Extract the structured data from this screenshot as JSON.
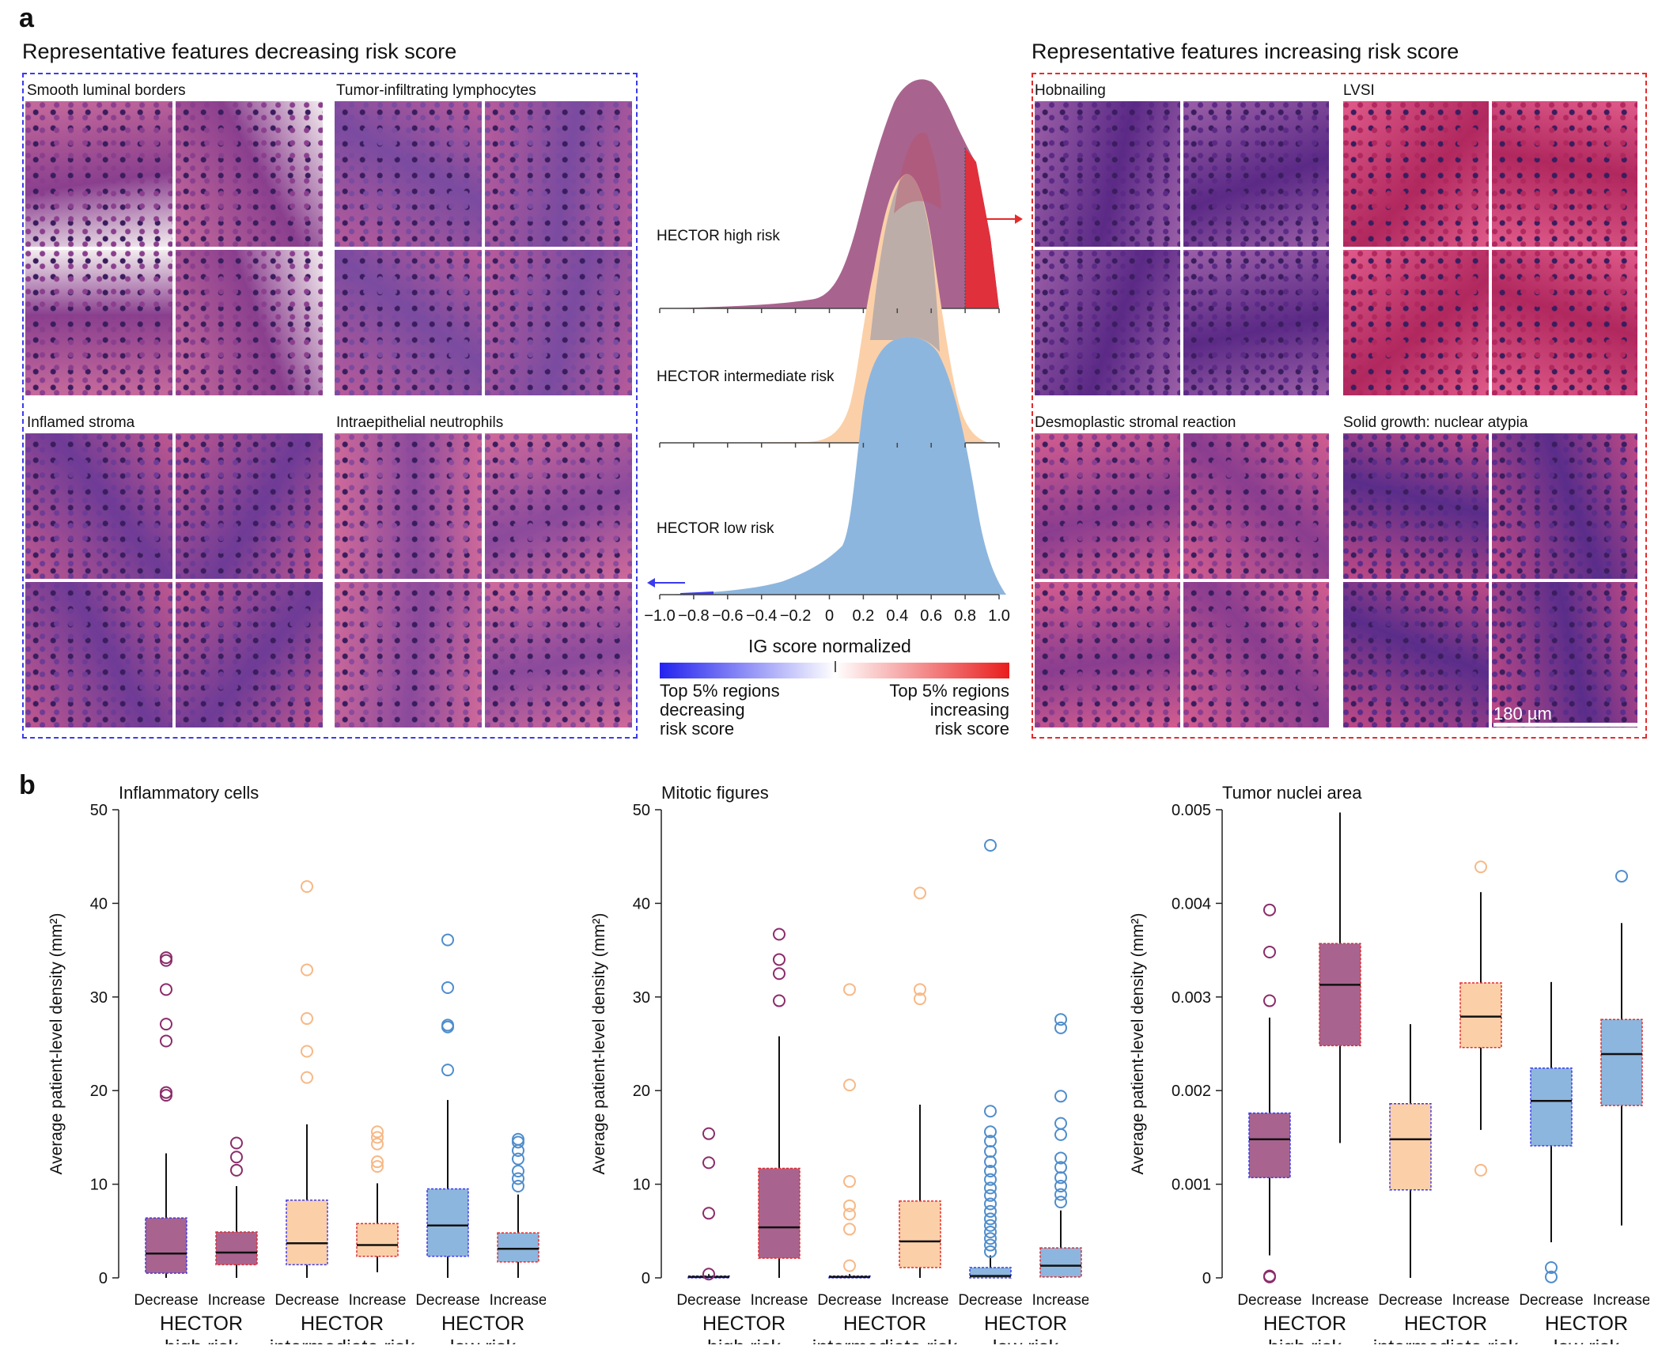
{
  "panel_a": {
    "letter": "a",
    "left_title": "Representative features decreasing risk score",
    "right_title": "Representative features increasing risk score",
    "left_features": [
      "Smooth luminal borders",
      "Tumor-infiltrating lymphocytes",
      "Inflamed stroma",
      "Intraepithelial neutrophils"
    ],
    "right_features": [
      "Hobnailing",
      "LVSI",
      "Desmoplastic stromal reaction",
      "Solid growth: nuclear atypia"
    ],
    "scale_bar": "180 µm",
    "ridge_labels": [
      "HECTOR high risk",
      "HECTOR intermediate risk",
      "HECTOR low risk"
    ],
    "x_ticks": [
      "−1.0",
      "−0.8",
      "−0.6",
      "−0.4",
      "−0.2",
      "0",
      "0.2",
      "0.4",
      "0.6",
      "0.8",
      "1.0"
    ],
    "x_axis_label": "IG score normalized",
    "legend_left": [
      "Top 5% regions",
      "decreasing",
      "risk score"
    ],
    "legend_right": [
      "Top 5% regions",
      "increasing",
      "risk score"
    ],
    "colors": {
      "blue_box": "#3b3bef",
      "red_box": "#e52b2b",
      "high": "#a8648f",
      "inter": "#fbd0a8",
      "low": "#8db6de"
    }
  },
  "panel_b": {
    "letter": "b",
    "y_axis_label": "Average patient-level density (mm²)",
    "category_labels": [
      "Decrease",
      "Increase"
    ],
    "group_labels": [
      [
        "HECTOR",
        "high risk"
      ],
      [
        "HECTOR",
        "intermediate risk"
      ],
      [
        "HECTOR",
        "low risk"
      ]
    ]
  },
  "chart_data": [
    {
      "type": "box",
      "title": "Inflammatory cells",
      "ylabel": "Average patient-level density (mm²)",
      "ylim": [
        0,
        50
      ],
      "yticks": [
        "0",
        "10",
        "20",
        "30",
        "40",
        "50"
      ],
      "boxes": [
        {
          "group": "HECTOR high risk",
          "category": "Decrease",
          "q1": 0.5,
          "median": 2.6,
          "q3": 6.4,
          "whisker_low": 0,
          "whisker_high": 13.3,
          "outliers": [
            19.5,
            19.8,
            25.3,
            27.1,
            30.8,
            33.9,
            34.2
          ]
        },
        {
          "group": "HECTOR high risk",
          "category": "Increase",
          "q1": 1.4,
          "median": 2.7,
          "q3": 4.9,
          "whisker_low": 0,
          "whisker_high": 9.8,
          "outliers": [
            11.5,
            12.9,
            14.4
          ]
        },
        {
          "group": "HECTOR intermediate risk",
          "category": "Decrease",
          "q1": 1.4,
          "median": 3.7,
          "q3": 8.3,
          "whisker_low": 0,
          "whisker_high": 16.4,
          "outliers": [
            21.4,
            24.2,
            27.7,
            32.9,
            41.8
          ]
        },
        {
          "group": "HECTOR intermediate risk",
          "category": "Increase",
          "q1": 2.3,
          "median": 3.5,
          "q3": 5.8,
          "whisker_low": 0.6,
          "whisker_high": 10.1,
          "outliers": [
            11.9,
            12.4,
            14.3,
            15.0,
            15.6
          ]
        },
        {
          "group": "HECTOR low risk",
          "category": "Decrease",
          "q1": 2.3,
          "median": 5.6,
          "q3": 9.5,
          "whisker_low": 0,
          "whisker_high": 19.0,
          "outliers": [
            22.2,
            26.8,
            27.0,
            31.0,
            36.1
          ]
        },
        {
          "group": "HECTOR low risk",
          "category": "Increase",
          "q1": 1.7,
          "median": 3.1,
          "q3": 4.8,
          "whisker_low": 0,
          "whisker_high": 8.9,
          "outliers": [
            9.8,
            10.6,
            11.4,
            12.7,
            13.6,
            14.5,
            14.8
          ]
        }
      ]
    },
    {
      "type": "box",
      "title": "Mitotic figures",
      "ylabel": "Average patient-level density (mm²)",
      "ylim": [
        0,
        50
      ],
      "yticks": [
        "0",
        "10",
        "20",
        "30",
        "40",
        "50"
      ],
      "boxes": [
        {
          "group": "HECTOR high risk",
          "category": "Decrease",
          "q1": 0,
          "median": 0.1,
          "q3": 0.2,
          "whisker_low": 0,
          "whisker_high": 0.4,
          "outliers": [
            0.4,
            6.9,
            12.3,
            15.4
          ]
        },
        {
          "group": "HECTOR high risk",
          "category": "Increase",
          "q1": 2.1,
          "median": 5.4,
          "q3": 11.7,
          "whisker_low": 0,
          "whisker_high": 25.8,
          "outliers": [
            29.6,
            32.5,
            34.0,
            36.7
          ]
        },
        {
          "group": "HECTOR intermediate risk",
          "category": "Decrease",
          "q1": 0,
          "median": 0.1,
          "q3": 0.2,
          "whisker_low": 0,
          "whisker_high": 0.4,
          "outliers": [
            1.3,
            5.2,
            6.8,
            7.7,
            10.3,
            20.6,
            30.8
          ]
        },
        {
          "group": "HECTOR intermediate risk",
          "category": "Increase",
          "q1": 1.1,
          "median": 3.9,
          "q3": 8.2,
          "whisker_low": 0,
          "whisker_high": 18.5,
          "outliers": [
            29.8,
            30.8,
            41.1
          ]
        },
        {
          "group": "HECTOR low risk",
          "category": "Decrease",
          "q1": 0,
          "median": 0.2,
          "q3": 1.1,
          "whisker_low": 0,
          "whisker_high": 2.4,
          "outliers": [
            2.8,
            3.5,
            4.2,
            4.9,
            5.6,
            6.3,
            7.1,
            7.9,
            8.8,
            9.6,
            10.5,
            11.4,
            12.4,
            13.5,
            14.6,
            15.6,
            17.8,
            46.2
          ]
        },
        {
          "group": "HECTOR low risk",
          "category": "Increase",
          "q1": 0.1,
          "median": 1.3,
          "q3": 3.2,
          "whisker_low": 0,
          "whisker_high": 7.2,
          "outliers": [
            8.1,
            8.9,
            9.8,
            10.7,
            11.8,
            12.8,
            15.3,
            16.5,
            19.4,
            26.7,
            27.6
          ]
        }
      ]
    },
    {
      "type": "box",
      "title": "Tumor nuclei area",
      "ylabel": "Average patient-level density (mm²)",
      "ylim": [
        0,
        0.005
      ],
      "yticks": [
        "0",
        "0.001",
        "0.002",
        "0.003",
        "0.004",
        "0.005"
      ],
      "boxes": [
        {
          "group": "HECTOR high risk",
          "category": "Decrease",
          "q1": 0.00107,
          "median": 0.00148,
          "q3": 0.00176,
          "whisker_low": 0.00024,
          "whisker_high": 0.00278,
          "outliers": [
            1e-05,
            2e-05,
            0.00296,
            0.00348,
            0.00393
          ]
        },
        {
          "group": "HECTOR high risk",
          "category": "Increase",
          "q1": 0.00248,
          "median": 0.00313,
          "q3": 0.00357,
          "whisker_low": 0.00144,
          "whisker_high": 0.00497,
          "outliers": []
        },
        {
          "group": "HECTOR intermediate risk",
          "category": "Decrease",
          "q1": 0.00094,
          "median": 0.00148,
          "q3": 0.00186,
          "whisker_low": 0,
          "whisker_high": 0.00271,
          "outliers": []
        },
        {
          "group": "HECTOR intermediate risk",
          "category": "Increase",
          "q1": 0.00246,
          "median": 0.00279,
          "q3": 0.00315,
          "whisker_low": 0.00158,
          "whisker_high": 0.00412,
          "outliers": [
            0.00115,
            0.00439
          ]
        },
        {
          "group": "HECTOR low risk",
          "category": "Decrease",
          "q1": 0.00141,
          "median": 0.00189,
          "q3": 0.00224,
          "whisker_low": 0.00038,
          "whisker_high": 0.00316,
          "outliers": [
            1e-05,
            0.00011
          ]
        },
        {
          "group": "HECTOR low risk",
          "category": "Increase",
          "q1": 0.00184,
          "median": 0.00239,
          "q3": 0.00276,
          "whisker_low": 0.00056,
          "whisker_high": 0.00379,
          "outliers": [
            0.00429
          ]
        }
      ]
    }
  ]
}
